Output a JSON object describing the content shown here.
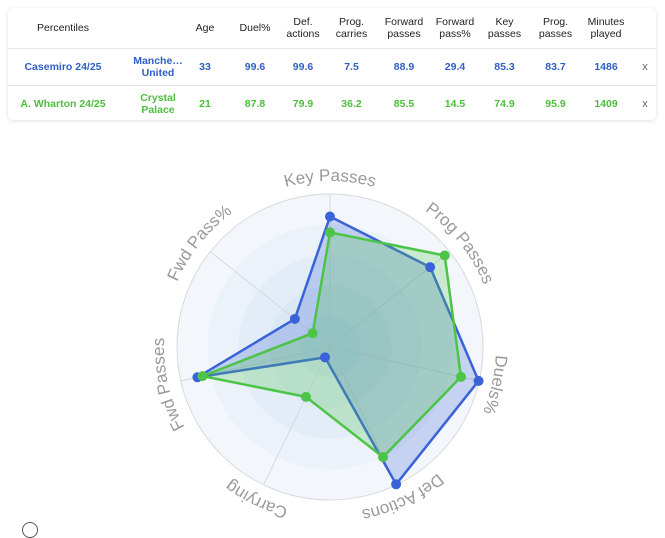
{
  "table": {
    "headers": [
      "Percentiles",
      "",
      "Age",
      "Duel%",
      "Def.\nactions",
      "Prog.\ncarries",
      "Forward\npasses",
      "Forward\npass%",
      "Key\npasses",
      "Prog.\npasses",
      "Minutes\nplayed"
    ],
    "rows": [
      {
        "player": "Casemiro 24/25",
        "team": "Manche…\nUnited",
        "age": "33",
        "duel_pct": "99.6",
        "def_actions": "99.6",
        "prog_carries": "7.5",
        "forward_passes": "88.9",
        "forward_pass_pct": "29.4",
        "key_passes": "85.3",
        "prog_passes": "83.7",
        "minutes": "1486",
        "remove": "x"
      },
      {
        "player": "A. Wharton 24/25",
        "team": "Crystal\nPalace",
        "age": "21",
        "duel_pct": "87.8",
        "def_actions": "79.9",
        "prog_carries": "36.2",
        "forward_passes": "85.5",
        "forward_pass_pct": "14.5",
        "key_passes": "74.9",
        "prog_passes": "95.9",
        "minutes": "1409",
        "remove": "x"
      }
    ]
  },
  "colors": {
    "casemiro": "#3b63d8",
    "wharton": "#4cc447",
    "grid": "#d6d9dd",
    "label": "#9a9a9a"
  },
  "chart_data": {
    "type": "radar",
    "axes": [
      "Key Passes",
      "Prog Passes",
      "Duels%",
      "Def Actions",
      "Carrying",
      "Fwd Passes",
      "Fwd Pass%"
    ],
    "range": [
      0,
      100
    ],
    "grid_rings": 5,
    "series": [
      {
        "name": "Casemiro 24/25",
        "values": [
          85.3,
          83.7,
          99.6,
          99.6,
          7.5,
          88.9,
          29.4
        ]
      },
      {
        "name": "A. Wharton 24/25",
        "values": [
          74.9,
          95.9,
          87.8,
          79.9,
          36.2,
          85.5,
          14.5
        ]
      }
    ]
  }
}
